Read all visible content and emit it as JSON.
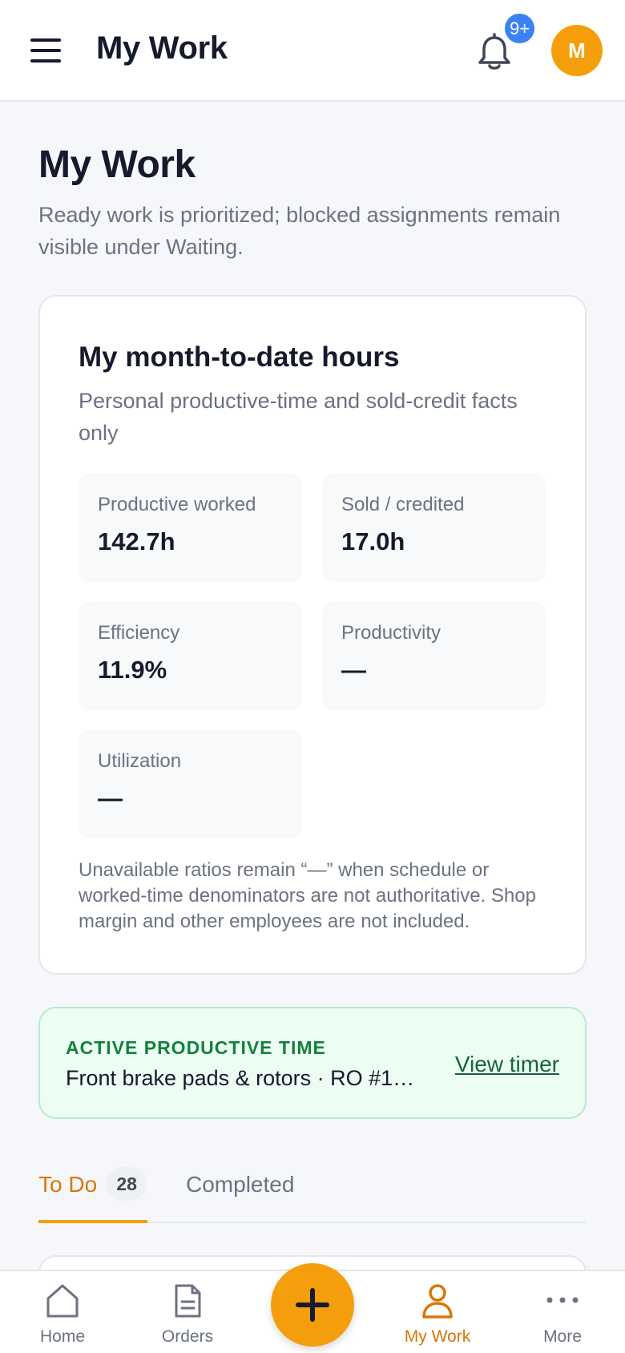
{
  "header": {
    "title": "My Work",
    "notification_count": "9+",
    "avatar_initial": "M"
  },
  "page": {
    "title": "My Work",
    "subtitle": "Ready work is prioritized; blocked assignments remain visible under Waiting."
  },
  "hours_card": {
    "title": "My month-to-date hours",
    "subtitle": "Personal productive-time and sold-credit facts only",
    "metrics": [
      {
        "label": "Productive worked",
        "value": "142.7h"
      },
      {
        "label": "Sold / credited",
        "value": "17.0h"
      },
      {
        "label": "Efficiency",
        "value": "11.9%"
      },
      {
        "label": "Productivity",
        "value": "—"
      },
      {
        "label": "Utilization",
        "value": "—"
      }
    ],
    "note": "Unavailable ratios remain “—” when schedule or worked-time denominators are not authoritative. Shop margin and other employees are not included."
  },
  "active_timer": {
    "eyebrow": "ACTIVE PRODUCTIVE TIME",
    "job": "Front brake pads & rotors · RO #1…",
    "link": "View timer"
  },
  "tabs": [
    {
      "label": "To Do",
      "count": "28",
      "active": true
    },
    {
      "label": "Completed",
      "active": false
    }
  ],
  "bottom_nav": {
    "items": [
      {
        "label": "Home",
        "icon": "home-icon"
      },
      {
        "label": "Orders",
        "icon": "document-icon"
      },
      {
        "label": "My Work",
        "icon": "person-icon",
        "active": true
      },
      {
        "label": "More",
        "icon": "more-icon"
      }
    ],
    "fab_icon": "plus-icon"
  },
  "colors": {
    "accent": "#f59e0b",
    "accent_text": "#d97706",
    "badge_blue": "#3b82f6",
    "success": "#15803d",
    "success_bg": "#ecfdf3"
  }
}
